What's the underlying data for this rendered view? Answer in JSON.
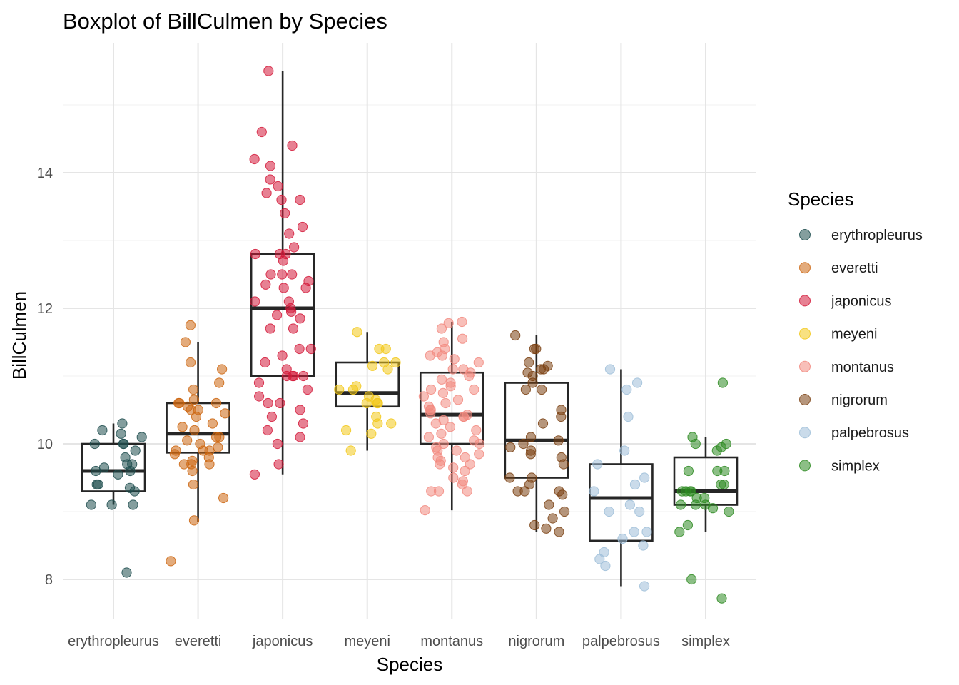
{
  "chart_data": {
    "type": "boxplot",
    "title": "Boxplot of BillCulmen by Species",
    "xlabel": "Species",
    "ylabel": "BillCulmen",
    "ylim": [
      7.4,
      15.8
    ],
    "yticks": [
      8,
      10,
      12,
      14
    ],
    "grid": true,
    "legend": {
      "title": "Species",
      "position": "right"
    },
    "categories": [
      "erythropleurus",
      "everetti",
      "japonicus",
      "meyeni",
      "montanus",
      "nigrorum",
      "palpebrosus",
      "simplex"
    ],
    "series": [
      {
        "name": "erythropleurus",
        "color": "#1F4E4F",
        "box": {
          "q1": 9.3,
          "median": 9.6,
          "q3": 10.0,
          "whisker_low": 9.1,
          "whisker_high": 10.3
        },
        "points": [
          10.3,
          10.2,
          10.15,
          10.1,
          10.0,
          10.0,
          10.0,
          9.9,
          9.8,
          9.7,
          9.7,
          9.65,
          9.6,
          9.6,
          9.55,
          9.4,
          9.4,
          9.35,
          9.3,
          9.1,
          9.1,
          9.1,
          8.1
        ]
      },
      {
        "name": "everetti",
        "color": "#CC6611",
        "box": {
          "q1": 9.87,
          "median": 10.15,
          "q3": 10.6,
          "whisker_low": 8.85,
          "whisker_high": 11.5
        },
        "points": [
          11.75,
          11.5,
          11.2,
          11.1,
          10.9,
          10.8,
          10.65,
          10.6,
          10.6,
          10.6,
          10.55,
          10.5,
          10.5,
          10.45,
          10.4,
          10.3,
          10.25,
          10.2,
          10.1,
          10.1,
          10.05,
          10.0,
          9.95,
          9.9,
          9.9,
          9.9,
          9.85,
          9.8,
          9.75,
          9.7,
          9.7,
          9.7,
          9.6,
          9.4,
          9.2,
          8.87,
          8.27
        ]
      },
      {
        "name": "japonicus",
        "color": "#D41A3A",
        "box": {
          "q1": 11.0,
          "median": 12.0,
          "q3": 12.8,
          "whisker_low": 9.55,
          "whisker_high": 15.5
        },
        "points": [
          15.5,
          14.6,
          14.4,
          14.2,
          14.1,
          13.9,
          13.8,
          13.7,
          13.6,
          13.6,
          13.4,
          13.2,
          13.1,
          12.9,
          12.8,
          12.8,
          12.8,
          12.7,
          12.5,
          12.5,
          12.5,
          12.4,
          12.35,
          12.3,
          12.3,
          12.1,
          12.1,
          12.0,
          11.95,
          11.9,
          11.85,
          11.7,
          11.7,
          11.4,
          11.4,
          11.3,
          11.2,
          11.1,
          11.0,
          11.0,
          11.0,
          11.0,
          10.9,
          10.8,
          10.7,
          10.6,
          10.6,
          10.5,
          10.4,
          10.3,
          10.2,
          10.1,
          10.0,
          9.7,
          9.55
        ]
      },
      {
        "name": "meyeni",
        "color": "#F2C81A",
        "box": {
          "q1": 10.55,
          "median": 10.75,
          "q3": 11.2,
          "whisker_low": 9.9,
          "whisker_high": 11.65
        },
        "points": [
          11.65,
          11.4,
          11.4,
          11.2,
          11.2,
          11.15,
          11.1,
          10.85,
          10.8,
          10.8,
          10.7,
          10.65,
          10.6,
          10.6,
          10.6,
          10.4,
          10.3,
          10.3,
          10.2,
          10.15,
          9.9
        ]
      },
      {
        "name": "montanus",
        "color": "#F28A80",
        "box": {
          "q1": 10.0,
          "median": 10.43,
          "q3": 11.05,
          "whisker_low": 9.02,
          "whisker_high": 11.8
        },
        "points": [
          11.8,
          11.78,
          11.7,
          11.55,
          11.5,
          11.4,
          11.35,
          11.3,
          11.3,
          11.25,
          11.2,
          11.1,
          11.1,
          11.05,
          11.0,
          10.95,
          10.9,
          10.85,
          10.8,
          10.8,
          10.75,
          10.7,
          10.65,
          10.6,
          10.55,
          10.5,
          10.5,
          10.45,
          10.43,
          10.4,
          10.4,
          10.35,
          10.3,
          10.25,
          10.2,
          10.15,
          10.1,
          10.05,
          10.0,
          10.0,
          9.95,
          9.9,
          9.9,
          9.85,
          9.8,
          9.8,
          9.75,
          9.7,
          9.7,
          9.65,
          9.6,
          9.5,
          9.45,
          9.4,
          9.3,
          9.3,
          9.3,
          9.02
        ]
      },
      {
        "name": "nigrorum",
        "color": "#7A3F10",
        "box": {
          "q1": 9.5,
          "median": 10.05,
          "q3": 10.9,
          "whisker_low": 8.7,
          "whisker_high": 11.6
        },
        "points": [
          11.6,
          11.4,
          11.4,
          11.2,
          11.15,
          11.1,
          11.1,
          11.05,
          11.0,
          10.9,
          10.8,
          10.8,
          10.5,
          10.4,
          10.3,
          10.1,
          10.05,
          10.0,
          9.95,
          9.9,
          9.85,
          9.8,
          9.7,
          9.5,
          9.5,
          9.4,
          9.3,
          9.3,
          9.3,
          9.25,
          9.1,
          9.0,
          8.9,
          8.8,
          8.75,
          8.7
        ]
      },
      {
        "name": "palpebrosus",
        "color": "#9EBED8",
        "box": {
          "q1": 8.57,
          "median": 9.2,
          "q3": 9.7,
          "whisker_low": 7.9,
          "whisker_high": 11.1
        },
        "points": [
          11.1,
          10.9,
          10.8,
          10.4,
          9.9,
          9.7,
          9.5,
          9.4,
          9.3,
          9.1,
          9.0,
          9.0,
          8.7,
          8.7,
          8.6,
          8.5,
          8.4,
          8.3,
          8.2,
          7.9
        ]
      },
      {
        "name": "simplex",
        "color": "#2E8B22",
        "box": {
          "q1": 9.1,
          "median": 9.3,
          "q3": 9.8,
          "whisker_low": 8.7,
          "whisker_high": 10.1
        },
        "points": [
          10.9,
          10.1,
          10.0,
          10.0,
          9.95,
          9.9,
          9.6,
          9.6,
          9.6,
          9.4,
          9.4,
          9.3,
          9.3,
          9.3,
          9.3,
          9.2,
          9.2,
          9.1,
          9.1,
          9.1,
          9.05,
          9.0,
          8.8,
          8.7,
          8.0,
          7.72
        ]
      }
    ]
  }
}
